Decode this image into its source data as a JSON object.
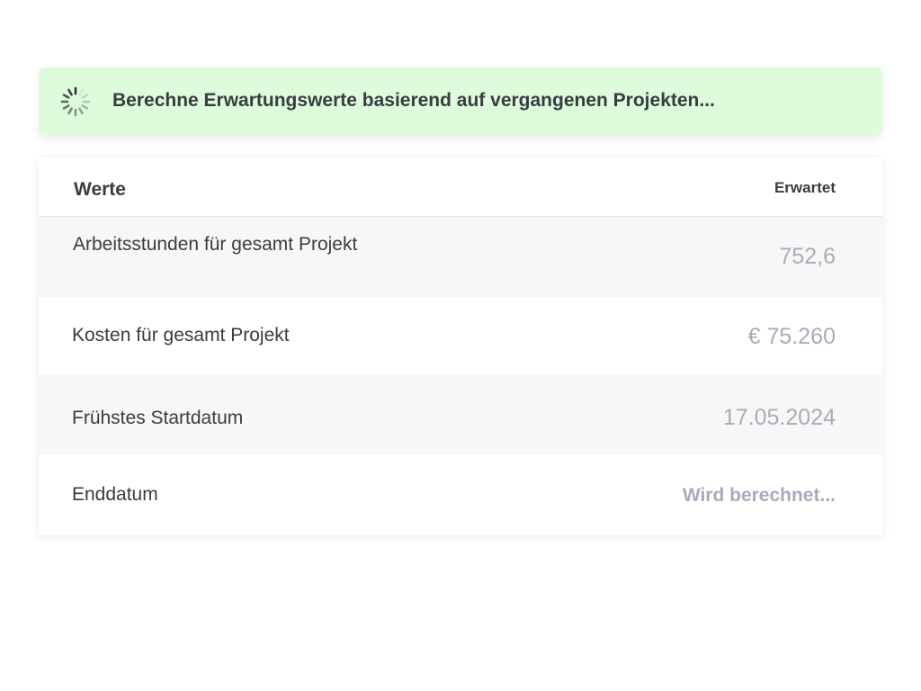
{
  "banner": {
    "icon": "loading-spinner-icon",
    "text": "Berechne Erwartungswerte basierend auf vergangenen Projekten...",
    "background": "#dcfcdc"
  },
  "table": {
    "header": {
      "label": "Werte",
      "value": "Erwartet"
    },
    "rows": [
      {
        "label": "Arbeitsstunden für gesamt Projekt",
        "value": "752,6"
      },
      {
        "label": "Kosten für gesamt Projekt",
        "value": "€ 75.260"
      },
      {
        "label": "Frühstes Startdatum",
        "value": "17.05.2024"
      },
      {
        "label": "Enddatum",
        "value": "Wird berechnet..."
      }
    ]
  }
}
